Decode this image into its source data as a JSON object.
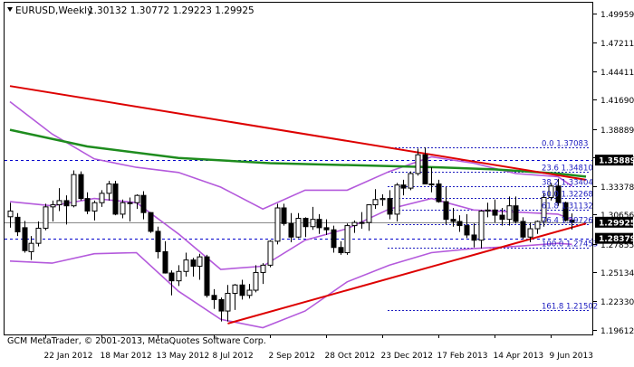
{
  "header": {
    "symbol": "EURUSD,Weekly",
    "ohlc": "1.30132 1.30772 1.29223 1.29925"
  },
  "watermark": "GCM MetaTrader, © 2001-2013, MetaQuotes Software Corp.",
  "chart_data": {
    "type": "candlestick",
    "symbol": "EURUSD",
    "timeframe": "Weekly",
    "ylim": [
      1.1915,
      1.51
    ],
    "price_ticks": [
      "1.49959",
      "1.47211",
      "1.44411",
      "1.41690",
      "1.38889",
      "1.36189",
      "1.33378",
      "1.30656",
      "1.27855",
      "1.25134",
      "1.22330",
      "1.19612"
    ],
    "date_ticks": [
      "22 Jan 2012",
      "18 Mar 2012",
      "13 May 2012",
      "8 Jul 2012",
      "2 Sep 2012",
      "28 Oct 2012",
      "23 Dec 2012",
      "17 Feb 2013",
      "14 Apr 2013",
      "9 Jun 2013"
    ],
    "price_labels": [
      {
        "text": "1.35889",
        "price": 1.35889
      },
      {
        "text": "1.29925",
        "price": 1.29925
      },
      {
        "text": "1.28379",
        "price": 1.28379
      }
    ],
    "fib_levels": [
      {
        "label": "0.0 1.37083",
        "price": 1.37083
      },
      {
        "label": "23.6 1.34810",
        "price": 1.3481
      },
      {
        "label": "38.2 1.33404",
        "price": 1.33404
      },
      {
        "label": "50.0 1.32268",
        "price": 1.32268
      },
      {
        "label": "61.8 1.31132",
        "price": 1.31132
      },
      {
        "label": "76.4 1.29726",
        "price": 1.29726
      },
      {
        "label": "100.0 1.27453",
        "price": 1.27453
      },
      {
        "label": "161.8 1.21502",
        "price": 1.21502
      }
    ],
    "candles": [
      {
        "date": "2011-12-18",
        "o": 1.3045,
        "h": 1.318,
        "l": 1.294,
        "c": 1.31
      },
      {
        "date": "2011-12-25",
        "o": 1.304,
        "h": 1.308,
        "l": 1.286,
        "c": 1.29
      },
      {
        "date": "2012-01-01",
        "o": 1.294,
        "h": 1.3005,
        "l": 1.27,
        "c": 1.272
      },
      {
        "date": "2012-01-08",
        "o": 1.271,
        "h": 1.286,
        "l": 1.263,
        "c": 1.279
      },
      {
        "date": "2012-01-15",
        "o": 1.279,
        "h": 1.3,
        "l": 1.276,
        "c": 1.2935
      },
      {
        "date": "2012-01-22",
        "o": 1.2935,
        "h": 1.317,
        "l": 1.2915,
        "c": 1.314
      },
      {
        "date": "2012-01-29",
        "o": 1.314,
        "h": 1.32,
        "l": 1.3,
        "c": 1.316
      },
      {
        "date": "2012-02-05",
        "o": 1.316,
        "h": 1.332,
        "l": 1.31,
        "c": 1.32
      },
      {
        "date": "2012-02-12",
        "o": 1.32,
        "h": 1.325,
        "l": 1.297,
        "c": 1.315
      },
      {
        "date": "2012-02-19",
        "o": 1.315,
        "h": 1.349,
        "l": 1.3135,
        "c": 1.345
      },
      {
        "date": "2012-02-26",
        "o": 1.345,
        "h": 1.348,
        "l": 1.32,
        "c": 1.322
      },
      {
        "date": "2012-03-04",
        "o": 1.322,
        "h": 1.328,
        "l": 1.307,
        "c": 1.31
      },
      {
        "date": "2012-03-11",
        "o": 1.31,
        "h": 1.32,
        "l": 1.301,
        "c": 1.318
      },
      {
        "date": "2012-03-18",
        "o": 1.318,
        "h": 1.33,
        "l": 1.314,
        "c": 1.327
      },
      {
        "date": "2012-03-25",
        "o": 1.327,
        "h": 1.339,
        "l": 1.32,
        "c": 1.336
      },
      {
        "date": "2012-04-01",
        "o": 1.336,
        "h": 1.339,
        "l": 1.306,
        "c": 1.307
      },
      {
        "date": "2012-04-08",
        "o": 1.307,
        "h": 1.321,
        "l": 1.303,
        "c": 1.318
      },
      {
        "date": "2012-04-15",
        "o": 1.318,
        "h": 1.323,
        "l": 1.3,
        "c": 1.318
      },
      {
        "date": "2012-04-22",
        "o": 1.318,
        "h": 1.326,
        "l": 1.312,
        "c": 1.325
      },
      {
        "date": "2012-04-29",
        "o": 1.325,
        "h": 1.329,
        "l": 1.302,
        "c": 1.3085
      },
      {
        "date": "2012-05-06",
        "o": 1.3085,
        "h": 1.309,
        "l": 1.289,
        "c": 1.2905
      },
      {
        "date": "2012-05-13",
        "o": 1.2905,
        "h": 1.295,
        "l": 1.2645,
        "c": 1.271
      },
      {
        "date": "2012-05-20",
        "o": 1.271,
        "h": 1.281,
        "l": 1.25,
        "c": 1.2505
      },
      {
        "date": "2012-05-27",
        "o": 1.2505,
        "h": 1.253,
        "l": 1.229,
        "c": 1.243
      },
      {
        "date": "2012-06-03",
        "o": 1.243,
        "h": 1.258,
        "l": 1.238,
        "c": 1.252
      },
      {
        "date": "2012-06-10",
        "o": 1.252,
        "h": 1.27,
        "l": 1.247,
        "c": 1.263
      },
      {
        "date": "2012-06-17",
        "o": 1.263,
        "h": 1.265,
        "l": 1.247,
        "c": 1.257
      },
      {
        "date": "2012-06-24",
        "o": 1.257,
        "h": 1.269,
        "l": 1.244,
        "c": 1.266
      },
      {
        "date": "2012-07-01",
        "o": 1.266,
        "h": 1.268,
        "l": 1.227,
        "c": 1.229
      },
      {
        "date": "2012-07-08",
        "o": 1.229,
        "h": 1.235,
        "l": 1.216,
        "c": 1.225
      },
      {
        "date": "2012-07-15",
        "o": 1.225,
        "h": 1.227,
        "l": 1.204,
        "c": 1.214
      },
      {
        "date": "2012-07-22",
        "o": 1.214,
        "h": 1.239,
        "l": 1.204,
        "c": 1.231
      },
      {
        "date": "2012-07-29",
        "o": 1.231,
        "h": 1.24,
        "l": 1.215,
        "c": 1.239
      },
      {
        "date": "2012-08-05",
        "o": 1.239,
        "h": 1.244,
        "l": 1.225,
        "c": 1.229
      },
      {
        "date": "2012-08-12",
        "o": 1.229,
        "h": 1.24,
        "l": 1.226,
        "c": 1.234
      },
      {
        "date": "2012-08-19",
        "o": 1.234,
        "h": 1.258,
        "l": 1.232,
        "c": 1.251
      },
      {
        "date": "2012-08-26",
        "o": 1.251,
        "h": 1.26,
        "l": 1.24,
        "c": 1.258
      },
      {
        "date": "2012-09-02",
        "o": 1.258,
        "h": 1.282,
        "l": 1.256,
        "c": 1.281
      },
      {
        "date": "2012-09-09",
        "o": 1.281,
        "h": 1.317,
        "l": 1.278,
        "c": 1.313
      },
      {
        "date": "2012-09-16",
        "o": 1.313,
        "h": 1.317,
        "l": 1.296,
        "c": 1.298
      },
      {
        "date": "2012-09-23",
        "o": 1.298,
        "h": 1.308,
        "l": 1.28,
        "c": 1.285
      },
      {
        "date": "2012-09-30",
        "o": 1.285,
        "h": 1.308,
        "l": 1.284,
        "c": 1.303
      },
      {
        "date": "2012-10-07",
        "o": 1.303,
        "h": 1.304,
        "l": 1.285,
        "c": 1.295
      },
      {
        "date": "2012-10-14",
        "o": 1.295,
        "h": 1.314,
        "l": 1.292,
        "c": 1.302
      },
      {
        "date": "2012-10-21",
        "o": 1.302,
        "h": 1.307,
        "l": 1.288,
        "c": 1.294
      },
      {
        "date": "2012-10-28",
        "o": 1.294,
        "h": 1.302,
        "l": 1.287,
        "c": 1.292
      },
      {
        "date": "2012-11-04",
        "o": 1.292,
        "h": 1.296,
        "l": 1.27,
        "c": 1.275
      },
      {
        "date": "2012-11-11",
        "o": 1.275,
        "h": 1.281,
        "l": 1.268,
        "c": 1.27
      },
      {
        "date": "2012-11-18",
        "o": 1.27,
        "h": 1.298,
        "l": 1.268,
        "c": 1.296
      },
      {
        "date": "2012-11-25",
        "o": 1.296,
        "h": 1.301,
        "l": 1.289,
        "c": 1.299
      },
      {
        "date": "2012-12-02",
        "o": 1.299,
        "h": 1.309,
        "l": 1.293,
        "c": 1.299
      },
      {
        "date": "2012-12-09",
        "o": 1.299,
        "h": 1.316,
        "l": 1.291,
        "c": 1.316
      },
      {
        "date": "2012-12-16",
        "o": 1.316,
        "h": 1.331,
        "l": 1.312,
        "c": 1.321
      },
      {
        "date": "2012-12-23",
        "o": 1.321,
        "h": 1.326,
        "l": 1.315,
        "c": 1.322
      },
      {
        "date": "2012-12-30",
        "o": 1.322,
        "h": 1.33,
        "l": 1.302,
        "c": 1.307
      },
      {
        "date": "2013-01-06",
        "o": 1.307,
        "h": 1.337,
        "l": 1.3,
        "c": 1.335
      },
      {
        "date": "2013-01-13",
        "o": 1.335,
        "h": 1.34,
        "l": 1.325,
        "c": 1.332
      },
      {
        "date": "2013-01-20",
        "o": 1.332,
        "h": 1.348,
        "l": 1.33,
        "c": 1.346
      },
      {
        "date": "2013-01-27",
        "o": 1.346,
        "h": 1.37,
        "l": 1.344,
        "c": 1.364
      },
      {
        "date": "2013-02-03",
        "o": 1.364,
        "h": 1.371,
        "l": 1.336,
        "c": 1.336
      },
      {
        "date": "2013-02-10",
        "o": 1.336,
        "h": 1.352,
        "l": 1.328,
        "c": 1.336
      },
      {
        "date": "2013-02-17",
        "o": 1.336,
        "h": 1.34,
        "l": 1.318,
        "c": 1.319
      },
      {
        "date": "2013-02-24",
        "o": 1.319,
        "h": 1.333,
        "l": 1.297,
        "c": 1.302
      },
      {
        "date": "2013-03-03",
        "o": 1.302,
        "h": 1.313,
        "l": 1.295,
        "c": 1.3
      },
      {
        "date": "2013-03-10",
        "o": 1.3,
        "h": 1.306,
        "l": 1.29,
        "c": 1.296
      },
      {
        "date": "2013-03-17",
        "o": 1.296,
        "h": 1.307,
        "l": 1.284,
        "c": 1.287
      },
      {
        "date": "2013-03-24",
        "o": 1.287,
        "h": 1.298,
        "l": 1.275,
        "c": 1.282
      },
      {
        "date": "2013-03-31",
        "o": 1.282,
        "h": 1.311,
        "l": 1.274,
        "c": 1.31
      },
      {
        "date": "2013-04-07",
        "o": 1.31,
        "h": 1.318,
        "l": 1.304,
        "c": 1.311
      },
      {
        "date": "2013-04-14",
        "o": 1.311,
        "h": 1.321,
        "l": 1.299,
        "c": 1.306
      },
      {
        "date": "2013-04-21",
        "o": 1.306,
        "h": 1.313,
        "l": 1.296,
        "c": 1.302
      },
      {
        "date": "2013-04-28",
        "o": 1.302,
        "h": 1.324,
        "l": 1.296,
        "c": 1.315
      },
      {
        "date": "2013-05-05",
        "o": 1.315,
        "h": 1.324,
        "l": 1.298,
        "c": 1.3
      },
      {
        "date": "2013-05-12",
        "o": 1.3,
        "h": 1.304,
        "l": 1.283,
        "c": 1.285
      },
      {
        "date": "2013-05-19",
        "o": 1.285,
        "h": 1.299,
        "l": 1.28,
        "c": 1.293
      },
      {
        "date": "2013-05-26",
        "o": 1.293,
        "h": 1.301,
        "l": 1.288,
        "c": 1.3
      },
      {
        "date": "2013-06-02",
        "o": 1.3,
        "h": 1.327,
        "l": 1.295,
        "c": 1.323
      },
      {
        "date": "2013-06-09",
        "o": 1.323,
        "h": 1.337,
        "l": 1.32,
        "c": 1.334
      },
      {
        "date": "2013-06-16",
        "o": 1.334,
        "h": 1.341,
        "l": 1.315,
        "c": 1.318
      },
      {
        "date": "2013-06-23",
        "o": 1.318,
        "h": 1.319,
        "l": 1.3,
        "c": 1.301
      },
      {
        "date": "2013-06-30",
        "o": 1.3013,
        "h": 1.3077,
        "l": 1.2922,
        "c": 1.2993
      }
    ],
    "trendlines": [
      {
        "name": "resistance",
        "color": "#dd0000",
        "from": {
          "date": "2011-12-18",
          "price": 1.43
        },
        "to": {
          "date": "2013-07-14",
          "price": 1.34
        }
      },
      {
        "name": "support",
        "color": "#dd0000",
        "from": {
          "date": "2012-07-22",
          "price": 1.202
        },
        "to": {
          "date": "2013-07-14",
          "price": 1.298
        }
      }
    ],
    "moving_average": {
      "color": "#1e8c1e",
      "points": [
        {
          "date": "2011-12-18",
          "price": 1.388
        },
        {
          "date": "2012-03-04",
          "price": 1.372
        },
        {
          "date": "2012-06-03",
          "price": 1.361
        },
        {
          "date": "2012-09-02",
          "price": 1.356
        },
        {
          "date": "2012-11-25",
          "price": 1.354
        },
        {
          "date": "2013-02-17",
          "price": 1.352
        },
        {
          "date": "2013-04-14",
          "price": 1.35
        },
        {
          "date": "2013-06-16",
          "price": 1.346
        },
        {
          "date": "2013-07-14",
          "price": 1.343
        }
      ]
    },
    "bollinger": {
      "color": "#b45adc",
      "upper": [
        {
          "date": "2011-12-18",
          "price": 1.415
        },
        {
          "date": "2012-01-29",
          "price": 1.384
        },
        {
          "date": "2012-03-11",
          "price": 1.36
        },
        {
          "date": "2012-04-22",
          "price": 1.352
        },
        {
          "date": "2012-06-03",
          "price": 1.347
        },
        {
          "date": "2012-07-15",
          "price": 1.333
        },
        {
          "date": "2012-08-26",
          "price": 1.312
        },
        {
          "date": "2012-10-07",
          "price": 1.33
        },
        {
          "date": "2012-11-18",
          "price": 1.33
        },
        {
          "date": "2012-12-30",
          "price": 1.348
        },
        {
          "date": "2013-02-10",
          "price": 1.362
        },
        {
          "date": "2013-03-24",
          "price": 1.356
        },
        {
          "date": "2013-05-05",
          "price": 1.346
        },
        {
          "date": "2013-06-16",
          "price": 1.343
        },
        {
          "date": "2013-06-30",
          "price": 1.334
        }
      ],
      "middle": [
        {
          "date": "2011-12-18",
          "price": 1.319
        },
        {
          "date": "2012-01-29",
          "price": 1.315
        },
        {
          "date": "2012-03-11",
          "price": 1.322
        },
        {
          "date": "2012-04-22",
          "price": 1.318
        },
        {
          "date": "2012-06-03",
          "price": 1.288
        },
        {
          "date": "2012-07-15",
          "price": 1.254
        },
        {
          "date": "2012-08-26",
          "price": 1.257
        },
        {
          "date": "2012-10-07",
          "price": 1.282
        },
        {
          "date": "2012-11-18",
          "price": 1.293
        },
        {
          "date": "2012-12-30",
          "price": 1.312
        },
        {
          "date": "2013-02-10",
          "price": 1.322
        },
        {
          "date": "2013-03-24",
          "price": 1.311
        },
        {
          "date": "2013-05-05",
          "price": 1.309
        },
        {
          "date": "2013-06-16",
          "price": 1.307
        },
        {
          "date": "2013-06-30",
          "price": 1.302
        }
      ],
      "lower": [
        {
          "date": "2011-12-18",
          "price": 1.262
        },
        {
          "date": "2012-01-29",
          "price": 1.26
        },
        {
          "date": "2012-03-11",
          "price": 1.269
        },
        {
          "date": "2012-04-22",
          "price": 1.27
        },
        {
          "date": "2012-06-03",
          "price": 1.233
        },
        {
          "date": "2012-07-15",
          "price": 1.206
        },
        {
          "date": "2012-08-26",
          "price": 1.198
        },
        {
          "date": "2012-10-07",
          "price": 1.214
        },
        {
          "date": "2012-11-18",
          "price": 1.242
        },
        {
          "date": "2012-12-30",
          "price": 1.258
        },
        {
          "date": "2013-02-10",
          "price": 1.27
        },
        {
          "date": "2013-03-24",
          "price": 1.274
        },
        {
          "date": "2013-05-05",
          "price": 1.276
        },
        {
          "date": "2013-06-16",
          "price": 1.279
        },
        {
          "date": "2013-06-30",
          "price": 1.278
        }
      ]
    },
    "colors": {
      "background": "#ffffff",
      "candle": "#000000",
      "grid": "#1c1cbf",
      "label_bg_up": "#000000",
      "label_bg_down": "#000000",
      "label_text": "#ffffff"
    }
  }
}
